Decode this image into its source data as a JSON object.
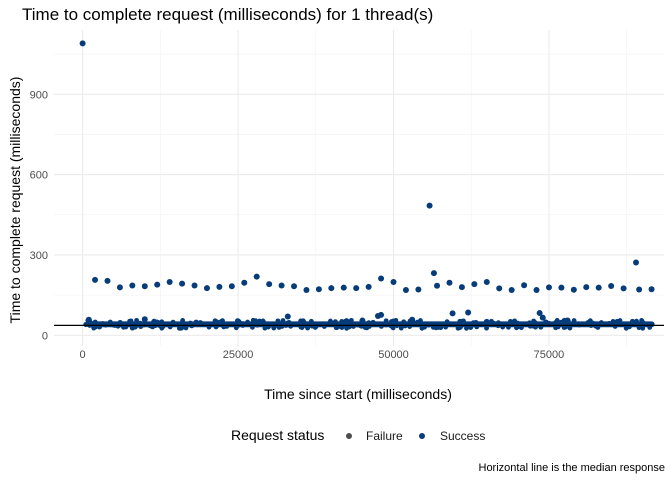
{
  "chart_data": {
    "type": "scatter",
    "title": "Time to complete request (milliseconds) for 1 thread(s)",
    "xlabel": "Time since start (milliseconds)",
    "ylabel": "Time to complete request (milliseconds)",
    "caption": "Horizontal line is the median response",
    "xlim": [
      -4600,
      93500
    ],
    "ylim": [
      -40,
      1140
    ],
    "x_ticks": [
      0,
      25000,
      50000,
      75000
    ],
    "x_tick_labels": [
      "0",
      "25000",
      "50000",
      "75000"
    ],
    "y_ticks": [
      0,
      300,
      600,
      900
    ],
    "y_tick_labels": [
      "0",
      "300",
      "600",
      "900"
    ],
    "grid": true,
    "median": 37,
    "legend": {
      "title": "Request status",
      "position": "bottom",
      "items": [
        {
          "label": "Failure",
          "color": "#4d4d4d"
        },
        {
          "label": "Success",
          "color": "#073c7a"
        }
      ]
    },
    "series": [
      {
        "name": "Success",
        "color": "#073c7a",
        "dense_band": {
          "x_range": [
            500,
            92000
          ],
          "y_range": [
            30,
            52
          ]
        },
        "points": [
          [
            0,
            1090
          ],
          [
            2000,
            207
          ],
          [
            4000,
            203
          ],
          [
            6000,
            179
          ],
          [
            8000,
            186
          ],
          [
            10000,
            183
          ],
          [
            12000,
            189
          ],
          [
            14000,
            199
          ],
          [
            16000,
            193
          ],
          [
            18000,
            186
          ],
          [
            20000,
            176
          ],
          [
            22000,
            181
          ],
          [
            24000,
            183
          ],
          [
            26000,
            196
          ],
          [
            28000,
            219
          ],
          [
            30000,
            191
          ],
          [
            32000,
            186
          ],
          [
            34000,
            183
          ],
          [
            36000,
            169
          ],
          [
            38000,
            172
          ],
          [
            40000,
            176
          ],
          [
            42000,
            178
          ],
          [
            44000,
            176
          ],
          [
            46000,
            181
          ],
          [
            48000,
            212
          ],
          [
            50000,
            199
          ],
          [
            52000,
            169
          ],
          [
            54000,
            171
          ],
          [
            55800,
            484
          ],
          [
            56500,
            232
          ],
          [
            57000,
            185
          ],
          [
            59000,
            196
          ],
          [
            61000,
            180
          ],
          [
            63000,
            191
          ],
          [
            65000,
            199
          ],
          [
            67000,
            175
          ],
          [
            69000,
            169
          ],
          [
            71000,
            187
          ],
          [
            73000,
            169
          ],
          [
            75000,
            179
          ],
          [
            77000,
            178
          ],
          [
            79000,
            170
          ],
          [
            81000,
            180
          ],
          [
            83000,
            178
          ],
          [
            85000,
            184
          ],
          [
            87000,
            175
          ],
          [
            89000,
            272
          ],
          [
            89500,
            171
          ],
          [
            91500,
            172
          ],
          [
            33000,
            70
          ],
          [
            47500,
            72
          ],
          [
            48000,
            76
          ],
          [
            59500,
            82
          ],
          [
            62000,
            85
          ],
          [
            73500,
            83
          ],
          [
            74000,
            66
          ],
          [
            1000,
            58
          ],
          [
            10000,
            60
          ],
          [
            25000,
            52
          ],
          [
            45000,
            55
          ],
          [
            53000,
            58
          ],
          [
            65000,
            50
          ],
          [
            78000,
            55
          ],
          [
            86000,
            50
          ],
          [
            90000,
            48
          ]
        ]
      },
      {
        "name": "Failure",
        "color": "#4d4d4d",
        "points": []
      }
    ]
  }
}
